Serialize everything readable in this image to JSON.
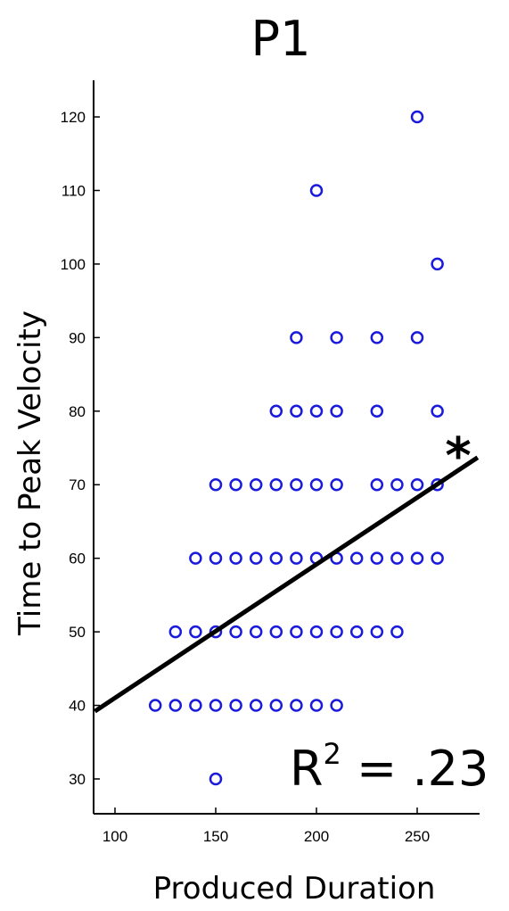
{
  "chart_data": {
    "type": "scatter",
    "title": "P1",
    "xlabel": "Produced Duration",
    "ylabel": "Time to Peak Velocity",
    "xlim": [
      90,
      280
    ],
    "ylim": [
      25,
      125
    ],
    "xticks": [
      100,
      150,
      200,
      250
    ],
    "yticks": [
      30,
      40,
      50,
      60,
      70,
      80,
      90,
      100,
      110,
      120
    ],
    "grid": false,
    "marker_color": "#1a1adc",
    "line_color": "#000000",
    "points": [
      [
        150,
        30
      ],
      [
        120,
        40
      ],
      [
        130,
        40
      ],
      [
        140,
        40
      ],
      [
        150,
        40
      ],
      [
        160,
        40
      ],
      [
        170,
        40
      ],
      [
        180,
        40
      ],
      [
        190,
        40
      ],
      [
        200,
        40
      ],
      [
        210,
        40
      ],
      [
        130,
        50
      ],
      [
        140,
        50
      ],
      [
        150,
        50
      ],
      [
        160,
        50
      ],
      [
        170,
        50
      ],
      [
        180,
        50
      ],
      [
        190,
        50
      ],
      [
        200,
        50
      ],
      [
        210,
        50
      ],
      [
        220,
        50
      ],
      [
        230,
        50
      ],
      [
        240,
        50
      ],
      [
        140,
        60
      ],
      [
        150,
        60
      ],
      [
        160,
        60
      ],
      [
        170,
        60
      ],
      [
        180,
        60
      ],
      [
        190,
        60
      ],
      [
        200,
        60
      ],
      [
        210,
        60
      ],
      [
        220,
        60
      ],
      [
        230,
        60
      ],
      [
        240,
        60
      ],
      [
        250,
        60
      ],
      [
        260,
        60
      ],
      [
        150,
        70
      ],
      [
        160,
        70
      ],
      [
        170,
        70
      ],
      [
        180,
        70
      ],
      [
        190,
        70
      ],
      [
        200,
        70
      ],
      [
        210,
        70
      ],
      [
        230,
        70
      ],
      [
        240,
        70
      ],
      [
        250,
        70
      ],
      [
        260,
        70
      ],
      [
        180,
        80
      ],
      [
        190,
        80
      ],
      [
        200,
        80
      ],
      [
        210,
        80
      ],
      [
        230,
        80
      ],
      [
        260,
        80
      ],
      [
        190,
        90
      ],
      [
        210,
        90
      ],
      [
        230,
        90
      ],
      [
        250,
        90
      ],
      [
        260,
        100
      ],
      [
        200,
        110
      ],
      [
        250,
        120
      ]
    ],
    "fit_line": {
      "x1": 90,
      "y1": 39.2,
      "x2": 280,
      "y2": 73.7
    },
    "annotations": {
      "r2_base": "R",
      "r2_exp": "2",
      "r2_rest": " = .23",
      "significance": "*"
    }
  }
}
